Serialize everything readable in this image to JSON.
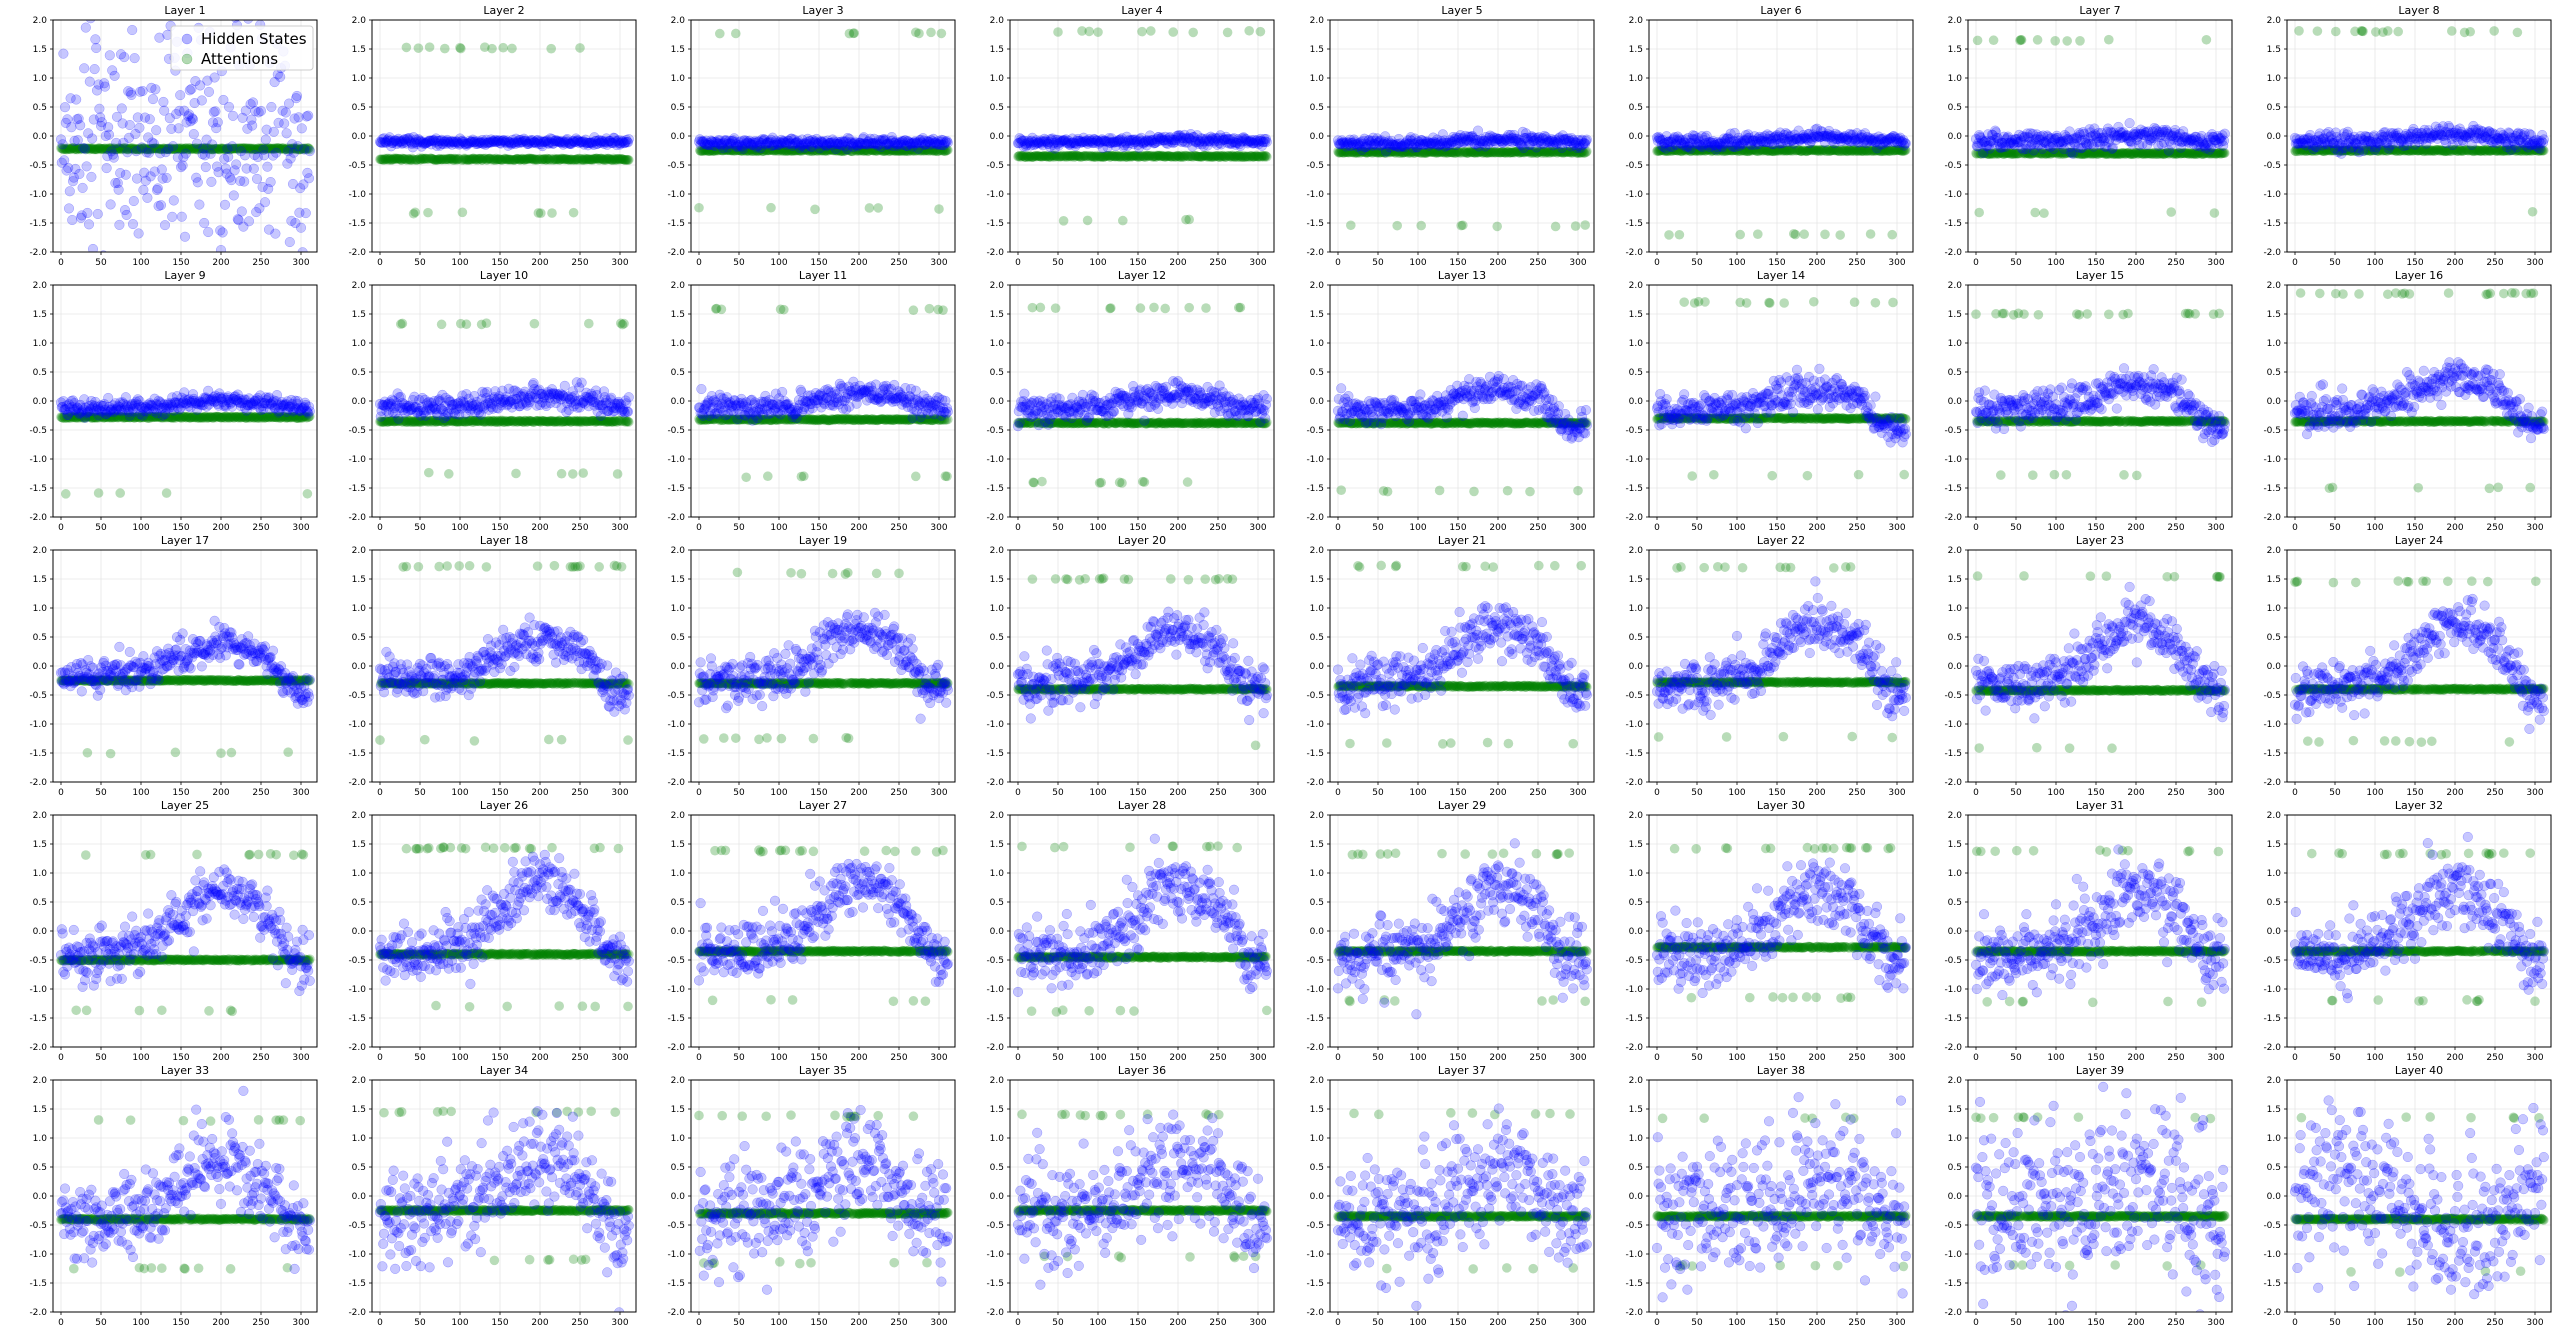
{
  "chart_data": {
    "type": "scatter",
    "grid": {
      "rows": 5,
      "cols": 8
    },
    "x_range": [
      -10,
      320
    ],
    "xticks": [
      0,
      50,
      100,
      150,
      200,
      250,
      300
    ],
    "y_range": [
      -2.0,
      2.0
    ],
    "yticks": [
      -2.0,
      -1.5,
      -1.0,
      -0.5,
      0.0,
      0.5,
      1.0,
      1.5,
      2.0
    ],
    "grid_lines": true,
    "legend": {
      "location": "upper-right of first panel",
      "entries": [
        "Hidden States",
        "Attentions"
      ]
    },
    "colors": {
      "hidden_states": "#0000ff",
      "attentions": "#008000"
    },
    "series": [
      {
        "name": "Hidden States",
        "color": "#0000ff",
        "alpha": 0.22
      },
      {
        "name": "Attentions",
        "color": "#008000",
        "alpha": 0.25
      }
    ],
    "n_points": 312,
    "panels": [
      {
        "title": "Layer 1",
        "hidden": {
          "base": -0.1,
          "amp": 0.0,
          "noise": 0.9,
          "trend": 0.0
        },
        "attn": {
          "main": -0.22,
          "high": null,
          "low": null
        }
      },
      {
        "title": "Layer 2",
        "hidden": {
          "base": -0.1,
          "amp": 0.0,
          "noise": 0.03,
          "trend": 0.0
        },
        "attn": {
          "main": -0.4,
          "high": 1.52,
          "low": -1.33
        }
      },
      {
        "title": "Layer 3",
        "hidden": {
          "base": -0.12,
          "amp": 0.0,
          "noise": 0.04,
          "trend": 0.0
        },
        "attn": {
          "main": -0.25,
          "high": 1.78,
          "low": -1.25
        }
      },
      {
        "title": "Layer 4",
        "hidden": {
          "base": -0.1,
          "amp": 0.05,
          "noise": 0.04,
          "trend": 0.0
        },
        "attn": {
          "main": -0.35,
          "high": 1.8,
          "low": -1.45
        }
      },
      {
        "title": "Layer 5",
        "hidden": {
          "base": -0.12,
          "amp": 0.05,
          "noise": 0.05,
          "trend": 0.0
        },
        "attn": {
          "main": -0.28,
          "high": null,
          "low": -1.55
        }
      },
      {
        "title": "Layer 6",
        "hidden": {
          "base": -0.1,
          "amp": 0.08,
          "noise": 0.05,
          "trend": 0.0
        },
        "attn": {
          "main": -0.25,
          "high": null,
          "low": -1.7
        }
      },
      {
        "title": "Layer 7",
        "hidden": {
          "base": -0.1,
          "amp": 0.1,
          "noise": 0.08,
          "trend": 0.0
        },
        "attn": {
          "main": -0.3,
          "high": 1.65,
          "low": -1.32
        }
      },
      {
        "title": "Layer 8",
        "hidden": {
          "base": -0.1,
          "amp": 0.12,
          "noise": 0.08,
          "trend": 0.0
        },
        "attn": {
          "main": -0.25,
          "high": 1.8,
          "low": -1.3
        }
      },
      {
        "title": "Layer 9",
        "hidden": {
          "base": -0.12,
          "amp": 0.15,
          "noise": 0.07,
          "trend": 0.0
        },
        "attn": {
          "main": -0.28,
          "high": null,
          "low": -1.6
        }
      },
      {
        "title": "Layer 10",
        "hidden": {
          "base": -0.1,
          "amp": 0.18,
          "noise": 0.1,
          "trend": 0.0
        },
        "attn": {
          "main": -0.35,
          "high": 1.33,
          "low": -1.25
        }
      },
      {
        "title": "Layer 11",
        "hidden": {
          "base": -0.12,
          "amp": 0.25,
          "noise": 0.1,
          "trend": 0.0
        },
        "attn": {
          "main": -0.32,
          "high": 1.58,
          "low": -1.3
        }
      },
      {
        "title": "Layer 12",
        "hidden": {
          "base": -0.15,
          "amp": 0.3,
          "noise": 0.12,
          "trend": 0.0
        },
        "attn": {
          "main": -0.38,
          "high": 1.6,
          "low": -1.4
        }
      },
      {
        "title": "Layer 13",
        "hidden": {
          "base": -0.15,
          "amp": 0.35,
          "noise": 0.12,
          "trend": 0.0
        },
        "attn": {
          "main": -0.38,
          "high": null,
          "low": -1.55
        }
      },
      {
        "title": "Layer 14",
        "hidden": {
          "base": -0.15,
          "amp": 0.35,
          "noise": 0.13,
          "trend": 0.0
        },
        "attn": {
          "main": -0.3,
          "high": 1.7,
          "low": -1.28
        }
      },
      {
        "title": "Layer 15",
        "hidden": {
          "base": -0.15,
          "amp": 0.45,
          "noise": 0.15,
          "trend": 0.0
        },
        "attn": {
          "main": -0.35,
          "high": 1.5,
          "low": -1.28
        }
      },
      {
        "title": "Layer 16",
        "hidden": {
          "base": -0.15,
          "amp": 0.55,
          "noise": 0.15,
          "trend": 0.0
        },
        "attn": {
          "main": -0.35,
          "high": 1.85,
          "low": -1.5
        }
      },
      {
        "title": "Layer 17",
        "hidden": {
          "base": -0.15,
          "amp": 0.5,
          "noise": 0.15,
          "trend": 0.05
        },
        "attn": {
          "main": -0.25,
          "high": null,
          "low": -1.5
        }
      },
      {
        "title": "Layer 18",
        "hidden": {
          "base": -0.2,
          "amp": 0.6,
          "noise": 0.18,
          "trend": 0.05
        },
        "attn": {
          "main": -0.3,
          "high": 1.72,
          "low": -1.28
        }
      },
      {
        "title": "Layer 19",
        "hidden": {
          "base": -0.25,
          "amp": 0.75,
          "noise": 0.2,
          "trend": 0.1
        },
        "attn": {
          "main": -0.3,
          "high": 1.6,
          "low": -1.25
        }
      },
      {
        "title": "Layer 20",
        "hidden": {
          "base": -0.3,
          "amp": 0.85,
          "noise": 0.2,
          "trend": 0.1
        },
        "attn": {
          "main": -0.4,
          "high": 1.5,
          "low": -1.38
        }
      },
      {
        "title": "Layer 21",
        "hidden": {
          "base": -0.3,
          "amp": 0.95,
          "noise": 0.22,
          "trend": 0.1
        },
        "attn": {
          "main": -0.35,
          "high": 1.72,
          "low": -1.33
        }
      },
      {
        "title": "Layer 22",
        "hidden": {
          "base": -0.35,
          "amp": 1.0,
          "noise": 0.22,
          "trend": 0.1
        },
        "attn": {
          "main": -0.28,
          "high": 1.7,
          "low": -1.22
        }
      },
      {
        "title": "Layer 23",
        "hidden": {
          "base": -0.35,
          "amp": 1.05,
          "noise": 0.22,
          "trend": 0.1
        },
        "attn": {
          "main": -0.42,
          "high": 1.55,
          "low": -1.42
        }
      },
      {
        "title": "Layer 24",
        "hidden": {
          "base": -0.35,
          "amp": 1.05,
          "noise": 0.22,
          "trend": 0.1
        },
        "attn": {
          "main": -0.4,
          "high": 1.45,
          "low": -1.3
        }
      },
      {
        "title": "Layer 25",
        "hidden": {
          "base": -0.45,
          "amp": 1.1,
          "noise": 0.22,
          "trend": 0.15
        },
        "attn": {
          "main": -0.5,
          "high": 1.32,
          "low": -1.38
        }
      },
      {
        "title": "Layer 26",
        "hidden": {
          "base": -0.4,
          "amp": 1.15,
          "noise": 0.25,
          "trend": 0.15
        },
        "attn": {
          "main": -0.4,
          "high": 1.43,
          "low": -1.3
        }
      },
      {
        "title": "Layer 27",
        "hidden": {
          "base": -0.4,
          "amp": 1.15,
          "noise": 0.25,
          "trend": 0.15
        },
        "attn": {
          "main": -0.35,
          "high": 1.38,
          "low": -1.2
        }
      },
      {
        "title": "Layer 28",
        "hidden": {
          "base": -0.45,
          "amp": 1.15,
          "noise": 0.28,
          "trend": 0.15
        },
        "attn": {
          "main": -0.45,
          "high": 1.45,
          "low": -1.38
        }
      },
      {
        "title": "Layer 29",
        "hidden": {
          "base": -0.45,
          "amp": 1.1,
          "noise": 0.3,
          "trend": 0.15
        },
        "attn": {
          "main": -0.35,
          "high": 1.33,
          "low": -1.2
        }
      },
      {
        "title": "Layer 30",
        "hidden": {
          "base": -0.45,
          "amp": 1.1,
          "noise": 0.3,
          "trend": 0.15
        },
        "attn": {
          "main": -0.28,
          "high": 1.43,
          "low": -1.15
        }
      },
      {
        "title": "Layer 31",
        "hidden": {
          "base": -0.45,
          "amp": 1.05,
          "noise": 0.32,
          "trend": 0.15
        },
        "attn": {
          "main": -0.35,
          "high": 1.38,
          "low": -1.22
        }
      },
      {
        "title": "Layer 32",
        "hidden": {
          "base": -0.45,
          "amp": 1.05,
          "noise": 0.32,
          "trend": 0.15
        },
        "attn": {
          "main": -0.35,
          "high": 1.33,
          "low": -1.2
        }
      },
      {
        "title": "Layer 33",
        "hidden": {
          "base": -0.45,
          "amp": 1.0,
          "noise": 0.35,
          "trend": 0.15
        },
        "attn": {
          "main": -0.4,
          "high": 1.3,
          "low": -1.25
        }
      },
      {
        "title": "Layer 34",
        "hidden": {
          "base": -0.3,
          "amp": 0.8,
          "noise": 0.4,
          "trend": 0.1
        },
        "attn": {
          "main": -0.25,
          "high": 1.45,
          "low": -1.1
        }
      },
      {
        "title": "Layer 35",
        "hidden": {
          "base": -0.35,
          "amp": 0.8,
          "noise": 0.45,
          "trend": 0.1
        },
        "attn": {
          "main": -0.3,
          "high": 1.38,
          "low": -1.15
        }
      },
      {
        "title": "Layer 36",
        "hidden": {
          "base": -0.3,
          "amp": 0.7,
          "noise": 0.45,
          "trend": 0.1
        },
        "attn": {
          "main": -0.25,
          "high": 1.4,
          "low": -1.05
        }
      },
      {
        "title": "Layer 37",
        "hidden": {
          "base": -0.35,
          "amp": 0.7,
          "noise": 0.5,
          "trend": 0.1
        },
        "attn": {
          "main": -0.35,
          "high": 1.42,
          "low": -1.25
        }
      },
      {
        "title": "Layer 38",
        "hidden": {
          "base": -0.3,
          "amp": 0.6,
          "noise": 0.6,
          "trend": 0.1
        },
        "attn": {
          "main": -0.35,
          "high": 1.35,
          "low": -1.2
        }
      },
      {
        "title": "Layer 39",
        "hidden": {
          "base": -0.25,
          "amp": 0.5,
          "noise": 0.7,
          "trend": 0.05
        },
        "attn": {
          "main": -0.35,
          "high": 1.35,
          "low": -1.2
        }
      },
      {
        "title": "Layer 40",
        "hidden": {
          "base": 0.2,
          "amp": -0.9,
          "noise": 0.6,
          "trend": 0.0
        },
        "attn": {
          "main": -0.4,
          "high": 1.35,
          "low": -1.3
        }
      }
    ]
  }
}
